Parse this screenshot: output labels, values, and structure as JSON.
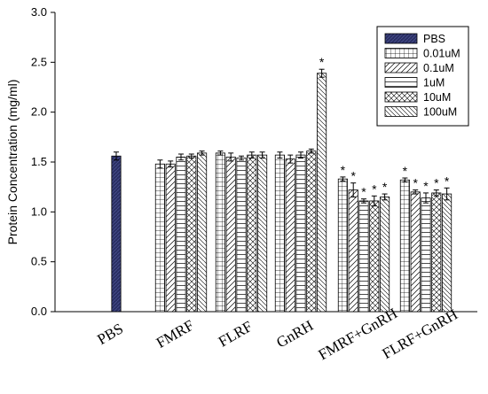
{
  "chart_data": {
    "type": "bar",
    "title": "",
    "xlabel": "",
    "ylabel": "Protein Concentration (mg/ml)",
    "ylim": [
      0,
      3.0
    ],
    "yticks": [
      "0.0",
      "0.5",
      "1.0",
      "1.5",
      "2.0",
      "2.5",
      "3.0"
    ],
    "categories": [
      "PBS",
      "FMRF",
      "FLRF",
      "GnRH",
      "FMRF+GnRH",
      "FLRF+GnRH"
    ],
    "legend": {
      "position": "top-right",
      "entries": [
        {
          "name": "PBS",
          "pattern": "solid-navy"
        },
        {
          "name": "0.01uM",
          "pattern": "grid"
        },
        {
          "name": "0.1uM",
          "pattern": "diagonal-up"
        },
        {
          "name": "1uM",
          "pattern": "horizontal"
        },
        {
          "name": "10uM",
          "pattern": "crosshatch"
        },
        {
          "name": "100uM",
          "pattern": "diagonal-down"
        }
      ]
    },
    "groups": [
      {
        "category": "PBS",
        "bars": [
          {
            "series": "PBS",
            "value": 1.56,
            "error": 0.04,
            "star": false
          }
        ]
      },
      {
        "category": "FMRF",
        "bars": [
          {
            "series": "0.01uM",
            "value": 1.48,
            "error": 0.04,
            "star": false
          },
          {
            "series": "0.1uM",
            "value": 1.48,
            "error": 0.03,
            "star": false
          },
          {
            "series": "1uM",
            "value": 1.55,
            "error": 0.03,
            "star": false
          },
          {
            "series": "10uM",
            "value": 1.56,
            "error": 0.02,
            "star": false
          },
          {
            "series": "100uM",
            "value": 1.59,
            "error": 0.02,
            "star": false
          }
        ]
      },
      {
        "category": "FLRF",
        "bars": [
          {
            "series": "0.01uM",
            "value": 1.59,
            "error": 0.02,
            "star": false
          },
          {
            "series": "0.1uM",
            "value": 1.55,
            "error": 0.04,
            "star": false
          },
          {
            "series": "1uM",
            "value": 1.54,
            "error": 0.02,
            "star": false
          },
          {
            "series": "10uM",
            "value": 1.57,
            "error": 0.03,
            "star": false
          },
          {
            "series": "100uM",
            "value": 1.57,
            "error": 0.03,
            "star": false
          }
        ]
      },
      {
        "category": "GnRH",
        "bars": [
          {
            "series": "0.01uM",
            "value": 1.57,
            "error": 0.03,
            "star": false
          },
          {
            "series": "0.1uM",
            "value": 1.53,
            "error": 0.04,
            "star": false
          },
          {
            "series": "1uM",
            "value": 1.57,
            "error": 0.03,
            "star": false
          },
          {
            "series": "10uM",
            "value": 1.61,
            "error": 0.02,
            "star": false
          },
          {
            "series": "100uM",
            "value": 2.39,
            "error": 0.04,
            "star": true
          }
        ]
      },
      {
        "category": "FMRF+GnRH",
        "bars": [
          {
            "series": "0.01uM",
            "value": 1.33,
            "error": 0.02,
            "star": true
          },
          {
            "series": "0.1uM",
            "value": 1.22,
            "error": 0.07,
            "star": true
          },
          {
            "series": "1uM",
            "value": 1.11,
            "error": 0.02,
            "star": true
          },
          {
            "series": "10uM",
            "value": 1.11,
            "error": 0.05,
            "star": true
          },
          {
            "series": "100uM",
            "value": 1.15,
            "error": 0.03,
            "star": true
          }
        ]
      },
      {
        "category": "FLRF+GnRH",
        "bars": [
          {
            "series": "0.01uM",
            "value": 1.32,
            "error": 0.02,
            "star": true
          },
          {
            "series": "0.1uM",
            "value": 1.2,
            "error": 0.02,
            "star": true
          },
          {
            "series": "1uM",
            "value": 1.14,
            "error": 0.05,
            "star": true
          },
          {
            "series": "10uM",
            "value": 1.19,
            "error": 0.03,
            "star": true
          },
          {
            "series": "100uM",
            "value": 1.18,
            "error": 0.06,
            "star": true
          }
        ]
      }
    ],
    "significance_marker": "*",
    "grid": false
  }
}
